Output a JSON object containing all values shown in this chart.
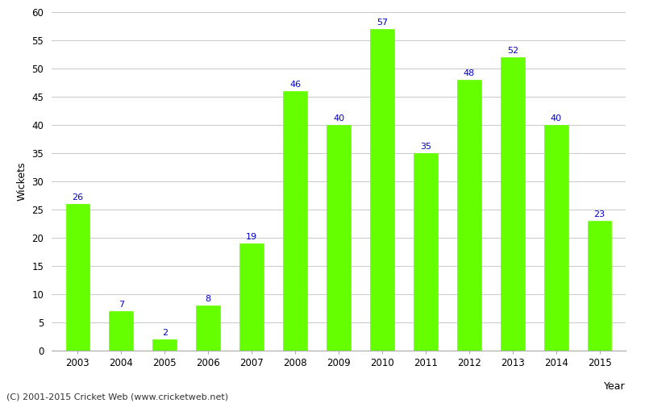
{
  "years": [
    "2003",
    "2004",
    "2005",
    "2006",
    "2007",
    "2008",
    "2009",
    "2010",
    "2011",
    "2012",
    "2013",
    "2014",
    "2015"
  ],
  "values": [
    26,
    7,
    2,
    8,
    19,
    46,
    40,
    57,
    35,
    48,
    52,
    40,
    23
  ],
  "bar_color": "#66ff00",
  "bar_edge_color": "#66ff00",
  "label_color": "#0000cc",
  "ylabel": "Wickets",
  "xlabel_text": "Year",
  "ylim": [
    0,
    60
  ],
  "yticks": [
    0,
    5,
    10,
    15,
    20,
    25,
    30,
    35,
    40,
    45,
    50,
    55,
    60
  ],
  "label_fontsize": 8,
  "axis_label_fontsize": 9,
  "tick_fontsize": 8.5,
  "footer_text": "(C) 2001-2015 Cricket Web (www.cricketweb.net)",
  "footer_fontsize": 8,
  "background_color": "#ffffff",
  "grid_color": "#cccccc"
}
